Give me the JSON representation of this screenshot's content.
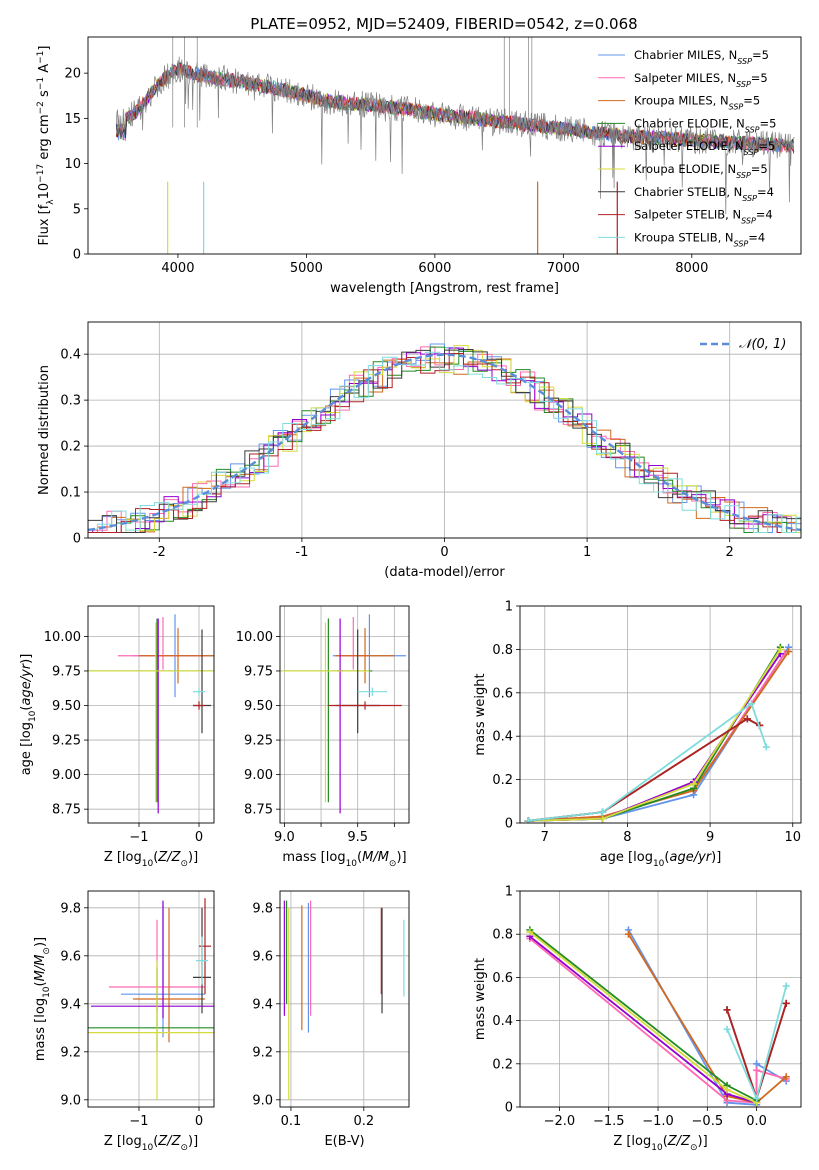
{
  "figure": {
    "title": "PLATE=0952, MJD=52409, FIBERID=0542, z=0.068"
  },
  "colors": {
    "Chabrier MILES": "#6495ed",
    "Salpeter MILES": "#ff69b4",
    "Kroupa MILES": "#d2691e",
    "Chabrier ELODIE": "#228b22",
    "Salpeter ELODIE": "#9400d3",
    "Kroupa ELODIE": "#d4dc3c",
    "Chabrier STELIB": "#3c3c3c",
    "Salpeter STELIB": "#b22222",
    "Kroupa STELIB": "#7fdcdc"
  },
  "chart_data": [
    {
      "id": "spectrum",
      "type": "line",
      "xlabel": "wavelength [Angstrom, rest frame]",
      "ylabel": "Flux [f",
      "xlim": [
        3300,
        8850
      ],
      "ylim": [
        0,
        24
      ],
      "xticks": [
        4000,
        5000,
        6000,
        7000,
        8000
      ],
      "yticks": [
        0,
        5,
        10,
        15,
        20
      ],
      "grid": false,
      "legend_position": "top-right",
      "legend": [
        {
          "label": "Chabrier MILES",
          "nssp": "5"
        },
        {
          "label": "Salpeter MILES",
          "nssp": "5"
        },
        {
          "label": "Kroupa MILES",
          "nssp": "5"
        },
        {
          "label": "Chabrier ELODIE",
          "nssp": "5"
        },
        {
          "label": "Salpeter ELODIE",
          "nssp": "5"
        },
        {
          "label": "Kroupa ELODIE",
          "nssp": "5"
        },
        {
          "label": "Chabrier STELIB",
          "nssp": "4"
        },
        {
          "label": "Salpeter STELIB",
          "nssp": "4"
        },
        {
          "label": "Kroupa STELIB",
          "nssp": "4"
        }
      ],
      "data_continuum": [
        [
          3550,
          14.5
        ],
        [
          3700,
          16
        ],
        [
          3800,
          18
        ],
        [
          3900,
          19.5
        ],
        [
          4000,
          20.5
        ],
        [
          4100,
          20
        ],
        [
          4300,
          19.5
        ],
        [
          4500,
          19
        ],
        [
          4800,
          18.2
        ],
        [
          5000,
          17.5
        ],
        [
          5200,
          16.8
        ],
        [
          5500,
          16.5
        ],
        [
          5800,
          16
        ],
        [
          6000,
          15.5
        ],
        [
          6300,
          15
        ],
        [
          6600,
          14.5
        ],
        [
          6900,
          14
        ],
        [
          7200,
          13.5
        ],
        [
          7500,
          13
        ],
        [
          7800,
          12.8
        ],
        [
          8100,
          12.5
        ],
        [
          8500,
          12.2
        ],
        [
          8800,
          11.9
        ]
      ],
      "model_dropouts": [
        [
          3920,
          0
        ],
        [
          4200,
          0
        ],
        [
          6800,
          0
        ],
        [
          7420,
          0
        ]
      ]
    },
    {
      "id": "residuals",
      "type": "histogram",
      "xlabel": "(data-model)/error",
      "ylabel": "Normed distribution",
      "xlim": [
        -2.5,
        2.5
      ],
      "ylim": [
        0,
        0.47
      ],
      "xticks": [
        -2,
        -1,
        0,
        1,
        2
      ],
      "yticks": [
        0.0,
        0.1,
        0.2,
        0.3,
        0.4
      ],
      "grid": true,
      "legend_position": "top-right",
      "legend_label": "𝒩(0, 1)",
      "curve": "normal pdf mean 0 sigma 1, dashed"
    },
    {
      "id": "age_vs_Z",
      "type": "errorbar",
      "xlabel": "Z [log",
      "ylabel": "age  [log",
      "xlim": [
        -1.85,
        0.25
      ],
      "ylim": [
        8.65,
        10.22
      ],
      "xticks": [
        -1,
        0
      ],
      "xticklabels": [
        "−1",
        "0"
      ],
      "yticks": [
        8.75,
        9.0,
        9.25,
        9.5,
        9.75,
        10.0
      ],
      "yticklabels": [
        "8.75",
        "9.00",
        "9.25",
        "9.50",
        "9.75",
        "10.00"
      ],
      "grid": true,
      "points": [
        {
          "model": "Chabrier MILES",
          "x": -0.4,
          "xerr": 0.7,
          "y": 9.86,
          "yerr": [
            0.3,
            0.3
          ]
        },
        {
          "model": "Salpeter MILES",
          "x": -0.6,
          "xerr": 0.75,
          "y": 9.86,
          "yerr": [
            0.1,
            0.28
          ]
        },
        {
          "model": "Kroupa MILES",
          "x": -0.35,
          "xerr": 0.65,
          "y": 9.86,
          "yerr": [
            0.2,
            0.2
          ]
        },
        {
          "model": "Chabrier ELODIE",
          "x": -0.7,
          "xerr": 1.3,
          "y": 9.75,
          "yerr": [
            0.95,
            0.38
          ]
        },
        {
          "model": "Salpeter ELODIE",
          "x": -0.68,
          "xerr": 0.02,
          "y": 9.75,
          "yerr": [
            1.03,
            0.38
          ]
        },
        {
          "model": "Kroupa ELODIE",
          "x": -0.72,
          "xerr": 1.3,
          "y": 9.75,
          "yerr": [
            0.95,
            0.35
          ]
        },
        {
          "model": "Chabrier STELIB",
          "x": 0.05,
          "xerr": 0.15,
          "y": 9.5,
          "yerr": [
            0.2,
            0.55
          ]
        },
        {
          "model": "Salpeter STELIB",
          "x": 0.0,
          "xerr": 0.1,
          "y": 9.5,
          "yerr": [
            0.03,
            0.03
          ]
        },
        {
          "model": "Kroupa STELIB",
          "x": 0.0,
          "xerr": 0.1,
          "y": 9.6,
          "yerr": [
            0.03,
            0.03
          ]
        }
      ]
    },
    {
      "id": "age_vs_mass",
      "type": "errorbar",
      "xlabel": "mass [log",
      "ylabel": "",
      "xlim": [
        8.97,
        9.85
      ],
      "ylim": [
        8.65,
        10.22
      ],
      "xticks": [
        9.0,
        9.25,
        9.5,
        9.75
      ],
      "xticklabels": [
        "9.0",
        "",
        "9.5",
        ""
      ],
      "yticks": [
        8.75,
        9.0,
        9.25,
        9.5,
        9.75,
        10.0
      ],
      "yticklabels": [
        "8.75",
        "9.00",
        "9.25",
        "9.50",
        "9.75",
        "10.00"
      ],
      "grid": true,
      "points": [
        {
          "model": "Chabrier MILES",
          "x": 9.58,
          "xerr": 0.25,
          "y": 9.86,
          "yerr": [
            0.3,
            0.3
          ]
        },
        {
          "model": "Salpeter MILES",
          "x": 9.47,
          "xerr": 0.1,
          "y": 9.86,
          "yerr": [
            0.1,
            0.28
          ]
        },
        {
          "model": "Kroupa MILES",
          "x": 9.55,
          "xerr": 0.2,
          "y": 9.86,
          "yerr": [
            0.2,
            0.2
          ]
        },
        {
          "model": "Chabrier ELODIE",
          "x": 9.3,
          "xerr": 0.3,
          "y": 9.75,
          "yerr": [
            0.95,
            0.38
          ]
        },
        {
          "model": "Salpeter ELODIE",
          "x": 9.38,
          "xerr": 0.02,
          "y": 9.75,
          "yerr": [
            1.03,
            0.38
          ]
        },
        {
          "model": "Kroupa ELODIE",
          "x": 9.28,
          "xerr": 0.3,
          "y": 9.75,
          "yerr": [
            0.95,
            0.35
          ]
        },
        {
          "model": "Chabrier STELIB",
          "x": 9.5,
          "xerr": 0.15,
          "y": 9.5,
          "yerr": [
            0.2,
            0.55
          ]
        },
        {
          "model": "Salpeter STELIB",
          "x": 9.55,
          "xerr": 0.25,
          "y": 9.5,
          "yerr": [
            0.03,
            0.03
          ]
        },
        {
          "model": "Kroupa STELIB",
          "x": 9.6,
          "xerr": 0.1,
          "y": 9.6,
          "yerr": [
            0.03,
            0.03
          ]
        }
      ]
    },
    {
      "id": "weight_vs_age",
      "type": "line",
      "xlabel": "age  [log",
      "ylabel": "mass weight",
      "xlim": [
        6.7,
        10.1
      ],
      "ylim": [
        0,
        1.0
      ],
      "xticks": [
        7,
        8,
        9,
        10
      ],
      "yticks": [
        0.0,
        0.2,
        0.4,
        0.6,
        0.8,
        1.0
      ],
      "grid": true,
      "series": [
        {
          "model": "Chabrier MILES",
          "points": [
            [
              6.8,
              0.01
            ],
            [
              7.7,
              0.02
            ],
            [
              8.8,
              0.13
            ],
            [
              9.95,
              0.81
            ]
          ]
        },
        {
          "model": "Salpeter MILES",
          "points": [
            [
              6.8,
              0.01
            ],
            [
              7.7,
              0.03
            ],
            [
              8.8,
              0.15
            ],
            [
              9.9,
              0.78
            ]
          ]
        },
        {
          "model": "Kroupa MILES",
          "points": [
            [
              6.8,
              0.01
            ],
            [
              7.7,
              0.03
            ],
            [
              8.8,
              0.15
            ],
            [
              9.95,
              0.79
            ]
          ]
        },
        {
          "model": "Chabrier ELODIE",
          "points": [
            [
              6.8,
              0.01
            ],
            [
              7.7,
              0.02
            ],
            [
              8.8,
              0.16
            ],
            [
              9.85,
              0.81
            ]
          ]
        },
        {
          "model": "Salpeter ELODIE",
          "points": [
            [
              6.8,
              0.01
            ],
            [
              7.7,
              0.02
            ],
            [
              8.8,
              0.19
            ],
            [
              9.85,
              0.78
            ]
          ]
        },
        {
          "model": "Kroupa ELODIE",
          "points": [
            [
              6.8,
              0.01
            ],
            [
              7.7,
              0.02
            ],
            [
              8.8,
              0.18
            ],
            [
              9.85,
              0.8
            ]
          ]
        },
        {
          "model": "Chabrier STELIB",
          "points": [
            [
              6.8,
              0.01
            ],
            [
              7.7,
              0.05
            ],
            [
              9.45,
              0.48
            ],
            [
              9.6,
              0.45
            ]
          ]
        },
        {
          "model": "Salpeter STELIB",
          "points": [
            [
              6.8,
              0.01
            ],
            [
              7.7,
              0.05
            ],
            [
              9.45,
              0.48
            ],
            [
              9.6,
              0.45
            ]
          ]
        },
        {
          "model": "Kroupa STELIB",
          "points": [
            [
              6.8,
              0.01
            ],
            [
              7.7,
              0.05
            ],
            [
              9.5,
              0.55
            ],
            [
              9.68,
              0.35
            ]
          ]
        }
      ]
    },
    {
      "id": "mass_vs_Z",
      "type": "errorbar",
      "xlabel": "Z [log",
      "ylabel": "mass [log",
      "xlim": [
        -1.85,
        0.25
      ],
      "ylim": [
        8.97,
        9.87
      ],
      "xticks": [
        -1,
        0
      ],
      "xticklabels": [
        "−1",
        "0"
      ],
      "yticks": [
        9.0,
        9.2,
        9.4,
        9.6,
        9.8
      ],
      "yticklabels": [
        "9.0",
        "9.2",
        "9.4",
        "9.6",
        "9.8"
      ],
      "grid": true,
      "points": [
        {
          "model": "Chabrier MILES",
          "x": -0.6,
          "xerr": 0.7,
          "y": 9.44,
          "yerr": [
            0.18,
            0.38
          ]
        },
        {
          "model": "Salpeter MILES",
          "x": -0.7,
          "xerr": 0.8,
          "y": 9.47,
          "yerr": [
            0.1,
            0.28
          ]
        },
        {
          "model": "Kroupa MILES",
          "x": -0.5,
          "xerr": 0.6,
          "y": 9.42,
          "yerr": [
            0.18,
            0.38
          ]
        },
        {
          "model": "Chabrier ELODIE",
          "x": -0.7,
          "xerr": 1.3,
          "y": 9.3,
          "yerr": [
            0.1,
            0.25
          ]
        },
        {
          "model": "Salpeter ELODIE",
          "x": -0.6,
          "xerr": 1.2,
          "y": 9.39,
          "yerr": [
            0.05,
            0.44
          ]
        },
        {
          "model": "Kroupa ELODIE",
          "x": -0.7,
          "xerr": 1.3,
          "y": 9.28,
          "yerr": [
            0.28,
            0.3
          ]
        },
        {
          "model": "Chabrier STELIB",
          "x": 0.05,
          "xerr": 0.15,
          "y": 9.51,
          "yerr": [
            0.15,
            0.29
          ]
        },
        {
          "model": "Salpeter STELIB",
          "x": 0.1,
          "xerr": 0.1,
          "y": 9.64,
          "yerr": [
            0.2,
            0.2
          ]
        },
        {
          "model": "Kroupa STELIB",
          "x": 0.05,
          "xerr": 0.1,
          "y": 9.58,
          "yerr": [
            0.1,
            0.1
          ]
        }
      ]
    },
    {
      "id": "mass_vs_ebv",
      "type": "errorbar",
      "xlabel": "E(B-V)",
      "ylabel": "",
      "xlim": [
        0.085,
        0.262
      ],
      "ylim": [
        8.97,
        9.87
      ],
      "xticks": [
        0.1,
        0.2
      ],
      "xticklabels": [
        "0.1",
        "0.2"
      ],
      "yticks": [
        9.0,
        9.2,
        9.4,
        9.6,
        9.8
      ],
      "yticklabels": [
        "9.0",
        "9.2",
        "9.4",
        "9.6",
        "9.8"
      ],
      "grid": true,
      "points": [
        {
          "model": "Chabrier MILES",
          "x": 0.124,
          "y": 9.55,
          "yerr": [
            0.27,
            0.27
          ]
        },
        {
          "model": "Salpeter MILES",
          "x": 0.127,
          "y": 9.55,
          "yerr": [
            0.2,
            0.28
          ]
        },
        {
          "model": "Kroupa MILES",
          "x": 0.115,
          "y": 9.55,
          "yerr": [
            0.26,
            0.26
          ]
        },
        {
          "model": "Chabrier ELODIE",
          "x": 0.094,
          "y": 9.6,
          "yerr": [
            0.2,
            0.23
          ]
        },
        {
          "model": "Salpeter ELODIE",
          "x": 0.091,
          "y": 9.59,
          "yerr": [
            0.24,
            0.24
          ]
        },
        {
          "model": "Kroupa ELODIE",
          "x": 0.097,
          "y": 9.5,
          "yerr": [
            0.5,
            0.3
          ]
        },
        {
          "model": "Chabrier STELIB",
          "x": 0.225,
          "y": 9.58,
          "yerr": [
            0.22,
            0.22
          ]
        },
        {
          "model": "Salpeter STELIB",
          "x": 0.224,
          "y": 9.62,
          "yerr": [
            0.18,
            0.18
          ]
        },
        {
          "model": "Kroupa STELIB",
          "x": 0.255,
          "y": 9.59,
          "yerr": [
            0.16,
            0.16
          ]
        }
      ]
    },
    {
      "id": "weight_vs_Z",
      "type": "line",
      "xlabel": "Z [log",
      "ylabel": "mass weight",
      "xlim": [
        -2.4,
        0.45
      ],
      "ylim": [
        0,
        1.0
      ],
      "xticks": [
        -2.0,
        -1.5,
        -1.0,
        -0.5,
        0.0
      ],
      "xticklabels": [
        "−2.0",
        "−1.5",
        "−1.0",
        "−0.5",
        "0.0"
      ],
      "yticks": [
        0.0,
        0.2,
        0.4,
        0.6,
        0.8,
        1.0
      ],
      "grid": true,
      "series": [
        {
          "model": "Chabrier MILES",
          "points": [
            [
              -1.3,
              0.82
            ],
            [
              -0.3,
              0.02
            ],
            [
              0.0,
              0.01
            ],
            [
              0.0,
              0.2
            ],
            [
              0.3,
              0.12
            ]
          ]
        },
        {
          "model": "Salpeter MILES",
          "points": [
            [
              -2.3,
              0.78
            ],
            [
              -0.3,
              0.03
            ],
            [
              0.0,
              0.02
            ],
            [
              0.0,
              0.17
            ],
            [
              0.3,
              0.13
            ]
          ]
        },
        {
          "model": "Kroupa MILES",
          "points": [
            [
              -1.3,
              0.8
            ],
            [
              -0.3,
              0.05
            ],
            [
              0.0,
              0.02
            ],
            [
              0.3,
              0.14
            ]
          ]
        },
        {
          "model": "Chabrier ELODIE",
          "points": [
            [
              -2.3,
              0.82
            ],
            [
              -0.3,
              0.1
            ],
            [
              0.0,
              0.03
            ]
          ]
        },
        {
          "model": "Salpeter ELODIE",
          "points": [
            [
              -2.3,
              0.79
            ],
            [
              -0.3,
              0.06
            ],
            [
              0.0,
              0.02
            ]
          ]
        },
        {
          "model": "Kroupa ELODIE",
          "points": [
            [
              -2.3,
              0.81
            ],
            [
              -0.3,
              0.08
            ],
            [
              0.0,
              0.02
            ]
          ]
        },
        {
          "model": "Chabrier STELIB",
          "points": [
            [
              -0.3,
              0.45
            ],
            [
              0.0,
              0.04
            ],
            [
              0.3,
              0.48
            ]
          ]
        },
        {
          "model": "Salpeter STELIB",
          "points": [
            [
              -0.3,
              0.45
            ],
            [
              0.0,
              0.04
            ],
            [
              0.3,
              0.48
            ]
          ]
        },
        {
          "model": "Kroupa STELIB",
          "points": [
            [
              -0.3,
              0.36
            ],
            [
              0.0,
              0.04
            ],
            [
              0.3,
              0.56
            ]
          ]
        }
      ]
    }
  ]
}
